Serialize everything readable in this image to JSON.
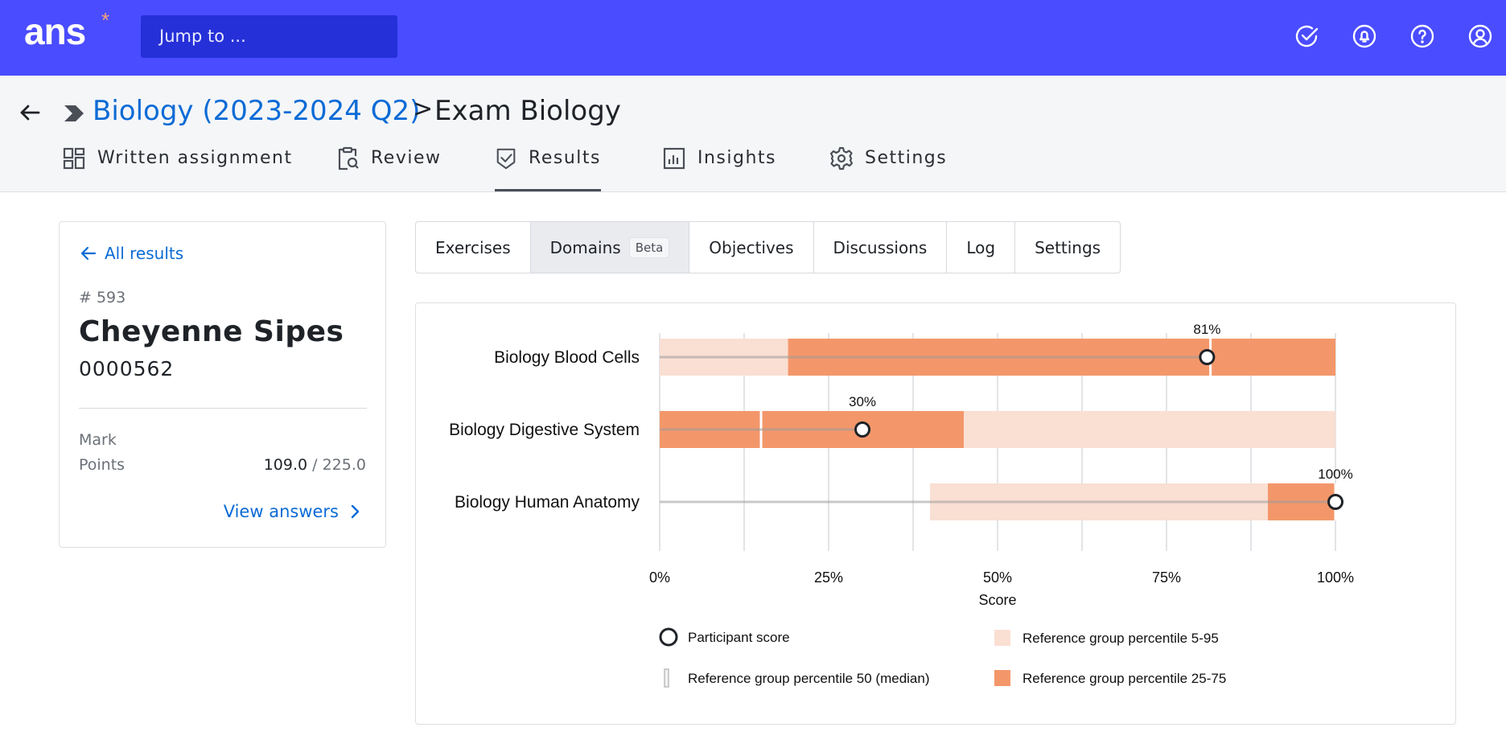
{
  "app": {
    "logo": "ans",
    "logo_mark": "*",
    "search_placeholder": "Jump to ...",
    "top_icons": [
      "check-circle-icon",
      "bell-icon",
      "help-icon",
      "user-icon"
    ]
  },
  "breadcrumb": {
    "course": "Biology (2023-2024 Q2)",
    "separator": ">",
    "title": "Exam Biology"
  },
  "nav_tabs": [
    {
      "label": "Written assignment",
      "icon": "dashboard-icon"
    },
    {
      "label": "Review",
      "icon": "clipboard-search-icon"
    },
    {
      "label": "Results",
      "icon": "shield-check-icon",
      "active": true
    },
    {
      "label": "Insights",
      "icon": "bar-chart-icon"
    },
    {
      "label": "Settings",
      "icon": "gear-icon"
    }
  ],
  "participant": {
    "back_label": "All results",
    "number": "# 593",
    "name": "Cheyenne Sipes",
    "student_id": "0000562",
    "mark_label": "Mark",
    "points_label": "Points",
    "points": "109.0",
    "points_total": "/ 225.0",
    "view_answers": "View answers"
  },
  "sub_tabs": [
    {
      "label": "Exercises"
    },
    {
      "label": "Domains",
      "badge": "Beta",
      "active": true
    },
    {
      "label": "Objectives"
    },
    {
      "label": "Discussions"
    },
    {
      "label": "Log"
    },
    {
      "label": "Settings"
    }
  ],
  "colors": {
    "brand": "#4a4cff",
    "link": "#0b6bd6",
    "band_5_95": "#fadfd3",
    "band_25_75": "#f3976b"
  },
  "chart_data": {
    "type": "bar",
    "orientation": "horizontal",
    "xlabel": "Score",
    "xlim": [
      0,
      100
    ],
    "x_ticks": [
      "0%",
      "25%",
      "50%",
      "75%",
      "100%"
    ],
    "grid": true,
    "legend_position": "bottom",
    "categories": [
      "Biology Blood Cells",
      "Biology Digestive System",
      "Biology Human Anatomy"
    ],
    "series": [
      {
        "name": "Participant score",
        "values": [
          81,
          30,
          100
        ],
        "labels": [
          "81%",
          "30%",
          "100%"
        ]
      },
      {
        "name": "Reference group percentile 50 (median)",
        "values": [
          81.5,
          15,
          100
        ]
      },
      {
        "name": "Reference group percentile 5-95",
        "ranges": [
          [
            0,
            100
          ],
          [
            0,
            100
          ],
          [
            40,
            100
          ]
        ]
      },
      {
        "name": "Reference group percentile 25-75",
        "ranges": [
          [
            19,
            100
          ],
          [
            0,
            45
          ],
          [
            90,
            100
          ]
        ]
      }
    ]
  }
}
